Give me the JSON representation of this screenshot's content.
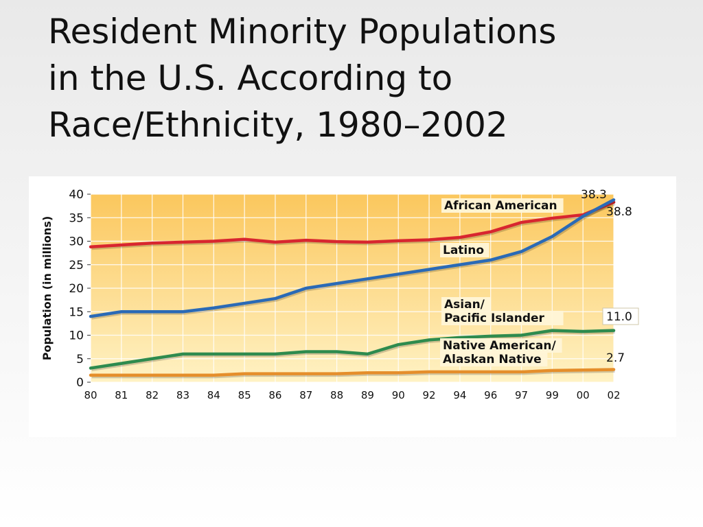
{
  "title_lines": [
    "Resident Minority Populations",
    "in the U.S. According to",
    "Race/Ethnicity, 1980–2002"
  ],
  "chart_data": {
    "type": "line",
    "ylabel": "Population (in millions)",
    "ylim": [
      0,
      40
    ],
    "yticks": [
      0,
      5,
      10,
      15,
      20,
      25,
      30,
      35,
      40
    ],
    "x": [
      "80",
      "81",
      "82",
      "83",
      "84",
      "85",
      "86",
      "87",
      "88",
      "89",
      "90",
      "92",
      "94",
      "96",
      "97",
      "99",
      "00",
      "02"
    ],
    "grid": true,
    "background_gradient": [
      "#fbc75d",
      "#fff2c4"
    ],
    "series": [
      {
        "name": "African American",
        "color": "#d8262f",
        "values": [
          28.8,
          29.2,
          29.6,
          29.8,
          30.0,
          30.4,
          29.8,
          30.2,
          29.9,
          29.8,
          30.1,
          30.3,
          30.8,
          32.0,
          34.0,
          34.9,
          35.6,
          38.3
        ],
        "end_label": "38.3"
      },
      {
        "name": "Latino",
        "color": "#2a6ab6",
        "values": [
          14.0,
          15.0,
          15.0,
          15.0,
          15.8,
          16.8,
          17.8,
          20.0,
          21.0,
          22.0,
          23.0,
          24.0,
          25.0,
          26.0,
          27.8,
          31.0,
          35.3,
          38.8
        ],
        "end_label": "38.8"
      },
      {
        "name": "Asian/\nPacific Islander",
        "color": "#2e8b4e",
        "values": [
          3.0,
          4.0,
          5.0,
          6.0,
          6.0,
          6.0,
          6.0,
          6.5,
          6.5,
          6.0,
          8.0,
          9.0,
          9.5,
          9.8,
          10.0,
          11.0,
          10.8,
          11.0
        ],
        "end_label": "11.0"
      },
      {
        "name": "Native American/\nAlaskan Native",
        "color": "#e58e2b",
        "values": [
          1.5,
          1.5,
          1.5,
          1.5,
          1.5,
          1.8,
          1.8,
          1.8,
          1.8,
          2.0,
          2.0,
          2.2,
          2.2,
          2.2,
          2.2,
          2.5,
          2.6,
          2.7
        ],
        "end_label": "2.7"
      }
    ]
  }
}
